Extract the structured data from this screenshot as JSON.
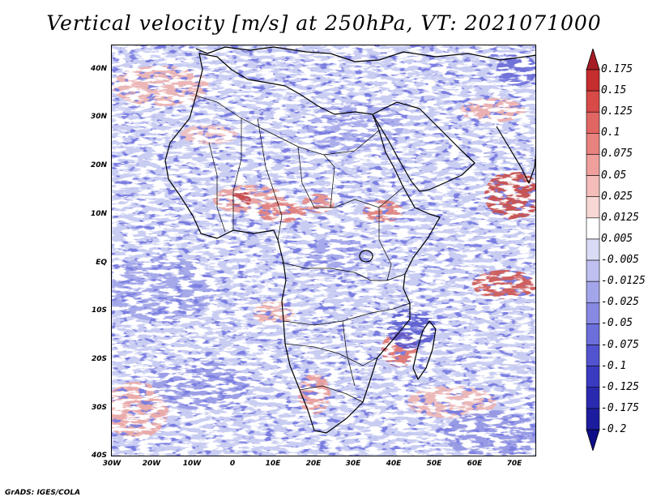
{
  "title": "Vertical velocity [m/s] at 250hPa, VT: 2021071000",
  "footer": "GrADS: IGES/COLA",
  "lat_labels": [
    "40N",
    "30N",
    "20N",
    "10N",
    "EQ",
    "10S",
    "20S",
    "30S",
    "40S"
  ],
  "lon_labels": [
    "30W",
    "20W",
    "10W",
    "0",
    "10E",
    "20E",
    "30E",
    "40E",
    "50E",
    "60E",
    "70E"
  ],
  "colorbar": {
    "levels": [
      "0.175",
      "0.15",
      "0.125",
      "0.1",
      "0.075",
      "0.05",
      "0.025",
      "0.0125",
      "0.005",
      "-0.005",
      "-0.0125",
      "-0.025",
      "-0.05",
      "-0.075",
      "-0.1",
      "-0.125",
      "-0.175",
      "-0.2"
    ],
    "colors": [
      "#a51c24",
      "#c62d2e",
      "#d74a47",
      "#e06664",
      "#e8827f",
      "#efa09c",
      "#f4bdb9",
      "#f8d8d5",
      "#ffffff",
      "#dadcf6",
      "#bfc0f0",
      "#a3a5ea",
      "#8789e2",
      "#6c6ed9",
      "#5153cf",
      "#3a3bc1",
      "#2a2ab0",
      "#1c1c9e",
      "#0e0e88"
    ]
  }
}
